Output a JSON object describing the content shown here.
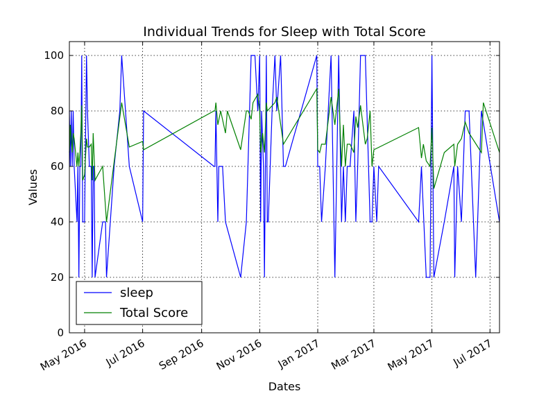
{
  "chart_data": {
    "type": "line",
    "title": "Individual Trends for Sleep with Total Score",
    "xlabel": "Dates",
    "ylabel": "Values",
    "ylim": [
      0,
      105
    ],
    "xlim": [
      "2016-04-15",
      "2017-07-11"
    ],
    "yticks": [
      0,
      20,
      40,
      60,
      80,
      100
    ],
    "xticks": [
      {
        "date": "2016-05-01",
        "label": "May 2016"
      },
      {
        "date": "2016-07-01",
        "label": "Jul 2016"
      },
      {
        "date": "2016-09-01",
        "label": "Sep 2016"
      },
      {
        "date": "2016-11-01",
        "label": "Nov 2016"
      },
      {
        "date": "2017-01-01",
        "label": "Jan 2017"
      },
      {
        "date": "2017-03-01",
        "label": "Mar 2017"
      },
      {
        "date": "2017-05-01",
        "label": "May 2017"
      },
      {
        "date": "2017-07-01",
        "label": "Jul 2017"
      }
    ],
    "grid": true,
    "legend_position": "lower-left",
    "series": [
      {
        "name": "sleep",
        "color": "#0000ff",
        "points": [
          [
            "2016-04-15",
            80
          ],
          [
            "2016-04-16",
            60
          ],
          [
            "2016-04-17",
            80
          ],
          [
            "2016-04-18",
            60
          ],
          [
            "2016-04-19",
            80
          ],
          [
            "2016-04-20",
            60
          ],
          [
            "2016-04-23",
            40
          ],
          [
            "2016-04-24",
            60
          ],
          [
            "2016-04-25",
            20
          ],
          [
            "2016-04-26",
            60
          ],
          [
            "2016-04-27",
            60
          ],
          [
            "2016-04-28",
            100
          ],
          [
            "2016-04-29",
            40
          ],
          [
            "2016-05-01",
            40
          ],
          [
            "2016-05-03",
            100
          ],
          [
            "2016-05-04",
            80
          ],
          [
            "2016-05-06",
            60
          ],
          [
            "2016-05-08",
            60
          ],
          [
            "2016-05-09",
            20
          ],
          [
            "2016-05-10",
            60
          ],
          [
            "2016-05-11",
            60
          ],
          [
            "2016-05-12",
            20
          ],
          [
            "2016-05-20",
            40
          ],
          [
            "2016-05-23",
            40
          ],
          [
            "2016-05-24",
            20
          ],
          [
            "2016-06-01",
            60
          ],
          [
            "2016-06-07",
            80
          ],
          [
            "2016-06-09",
            100
          ],
          [
            "2016-06-17",
            60
          ],
          [
            "2016-07-01",
            40
          ],
          [
            "2016-07-02",
            80
          ],
          [
            "2016-09-14",
            60
          ],
          [
            "2016-09-15",
            60
          ],
          [
            "2016-09-16",
            80
          ],
          [
            "2016-09-18",
            40
          ],
          [
            "2016-09-19",
            60
          ],
          [
            "2016-09-23",
            60
          ],
          [
            "2016-09-26",
            40
          ],
          [
            "2016-10-12",
            20
          ],
          [
            "2016-10-18",
            40
          ],
          [
            "2016-10-23",
            100
          ],
          [
            "2016-10-27",
            100
          ],
          [
            "2016-10-30",
            80
          ],
          [
            "2016-11-01",
            100
          ],
          [
            "2016-11-02",
            40
          ],
          [
            "2016-11-03",
            80
          ],
          [
            "2016-11-05",
            60
          ],
          [
            "2016-11-06",
            20
          ],
          [
            "2016-11-08",
            100
          ],
          [
            "2016-11-09",
            40
          ],
          [
            "2016-11-10",
            40
          ],
          [
            "2016-11-14",
            80
          ],
          [
            "2016-11-17",
            100
          ],
          [
            "2016-11-19",
            80
          ],
          [
            "2016-11-23",
            100
          ],
          [
            "2016-11-26",
            60
          ],
          [
            "2016-11-28",
            60
          ],
          [
            "2016-12-31",
            100
          ],
          [
            "2017-01-01",
            60
          ],
          [
            "2017-01-03",
            60
          ],
          [
            "2017-01-05",
            40
          ],
          [
            "2017-01-09",
            60
          ],
          [
            "2017-01-15",
            100
          ],
          [
            "2017-01-17",
            60
          ],
          [
            "2017-01-19",
            20
          ],
          [
            "2017-01-23",
            100
          ],
          [
            "2017-01-26",
            40
          ],
          [
            "2017-01-28",
            60
          ],
          [
            "2017-01-30",
            40
          ],
          [
            "2017-02-01",
            60
          ],
          [
            "2017-02-04",
            60
          ],
          [
            "2017-02-08",
            80
          ],
          [
            "2017-02-10",
            40
          ],
          [
            "2017-02-12",
            60
          ],
          [
            "2017-02-15",
            100
          ],
          [
            "2017-02-20",
            100
          ],
          [
            "2017-02-25",
            40
          ],
          [
            "2017-02-27",
            40
          ],
          [
            "2017-03-01",
            60
          ],
          [
            "2017-03-04",
            40
          ],
          [
            "2017-03-06",
            60
          ],
          [
            "2017-04-17",
            40
          ],
          [
            "2017-04-20",
            60
          ],
          [
            "2017-04-25",
            20
          ],
          [
            "2017-04-29",
            20
          ],
          [
            "2017-05-01",
            100
          ],
          [
            "2017-05-03",
            20
          ],
          [
            "2017-05-14",
            40
          ],
          [
            "2017-05-24",
            60
          ],
          [
            "2017-05-25",
            20
          ],
          [
            "2017-05-28",
            60
          ],
          [
            "2017-06-01",
            40
          ],
          [
            "2017-06-05",
            80
          ],
          [
            "2017-06-09",
            80
          ],
          [
            "2017-06-16",
            20
          ],
          [
            "2017-06-22",
            80
          ],
          [
            "2017-07-11",
            40
          ]
        ]
      },
      {
        "name": "Total Score",
        "color": "#008000",
        "points": [
          [
            "2016-04-15",
            65
          ],
          [
            "2016-04-16",
            75
          ],
          [
            "2016-04-17",
            70
          ],
          [
            "2016-04-18",
            65
          ],
          [
            "2016-04-19",
            72
          ],
          [
            "2016-04-20",
            70
          ],
          [
            "2016-04-23",
            60
          ],
          [
            "2016-04-24",
            65
          ],
          [
            "2016-04-25",
            60
          ],
          [
            "2016-04-26",
            65
          ],
          [
            "2016-04-27",
            72
          ],
          [
            "2016-04-28",
            82
          ],
          [
            "2016-04-29",
            55
          ],
          [
            "2016-05-01",
            57
          ],
          [
            "2016-05-03",
            70
          ],
          [
            "2016-05-04",
            67
          ],
          [
            "2016-05-06",
            67
          ],
          [
            "2016-05-08",
            68
          ],
          [
            "2016-05-09",
            55
          ],
          [
            "2016-05-10",
            72
          ],
          [
            "2016-05-12",
            55
          ],
          [
            "2016-05-15",
            57
          ],
          [
            "2016-05-20",
            60
          ],
          [
            "2016-05-24",
            40
          ],
          [
            "2016-06-09",
            83
          ],
          [
            "2016-06-17",
            67
          ],
          [
            "2016-07-01",
            69
          ],
          [
            "2016-07-02",
            66
          ],
          [
            "2016-09-14",
            80
          ],
          [
            "2016-09-15",
            80
          ],
          [
            "2016-09-16",
            83
          ],
          [
            "2016-09-18",
            75
          ],
          [
            "2016-09-21",
            80
          ],
          [
            "2016-09-26",
            72
          ],
          [
            "2016-09-28",
            80
          ],
          [
            "2016-10-12",
            66
          ],
          [
            "2016-10-18",
            80
          ],
          [
            "2016-10-20",
            80
          ],
          [
            "2016-10-23",
            77
          ],
          [
            "2016-10-25",
            83
          ],
          [
            "2016-10-30",
            86
          ],
          [
            "2016-11-01",
            80
          ],
          [
            "2016-11-02",
            65
          ],
          [
            "2016-11-04",
            72
          ],
          [
            "2016-11-06",
            65
          ],
          [
            "2016-11-08",
            83
          ],
          [
            "2016-11-09",
            80
          ],
          [
            "2016-11-17",
            83
          ],
          [
            "2016-11-19",
            85
          ],
          [
            "2016-11-26",
            68
          ],
          [
            "2016-12-31",
            88
          ],
          [
            "2017-01-01",
            66
          ],
          [
            "2017-01-03",
            65
          ],
          [
            "2017-01-05",
            68
          ],
          [
            "2017-01-09",
            68
          ],
          [
            "2017-01-15",
            85
          ],
          [
            "2017-01-19",
            75
          ],
          [
            "2017-01-23",
            88
          ],
          [
            "2017-01-26",
            60
          ],
          [
            "2017-01-28",
            75
          ],
          [
            "2017-01-30",
            60
          ],
          [
            "2017-02-01",
            68
          ],
          [
            "2017-02-04",
            68
          ],
          [
            "2017-02-08",
            65
          ],
          [
            "2017-02-10",
            78
          ],
          [
            "2017-02-12",
            74
          ],
          [
            "2017-02-15",
            82
          ],
          [
            "2017-02-20",
            68
          ],
          [
            "2017-02-22",
            70
          ],
          [
            "2017-02-25",
            80
          ],
          [
            "2017-02-27",
            60
          ],
          [
            "2017-03-01",
            66
          ],
          [
            "2017-04-17",
            74
          ],
          [
            "2017-04-20",
            63
          ],
          [
            "2017-04-22",
            68
          ],
          [
            "2017-04-25",
            62
          ],
          [
            "2017-04-29",
            60
          ],
          [
            "2017-05-01",
            74
          ],
          [
            "2017-05-03",
            52
          ],
          [
            "2017-05-14",
            65
          ],
          [
            "2017-05-24",
            68
          ],
          [
            "2017-05-25",
            60
          ],
          [
            "2017-05-28",
            68
          ],
          [
            "2017-06-01",
            70
          ],
          [
            "2017-06-05",
            76
          ],
          [
            "2017-06-09",
            72
          ],
          [
            "2017-06-22",
            65
          ],
          [
            "2017-06-24",
            83
          ],
          [
            "2017-07-11",
            65
          ]
        ]
      }
    ]
  }
}
